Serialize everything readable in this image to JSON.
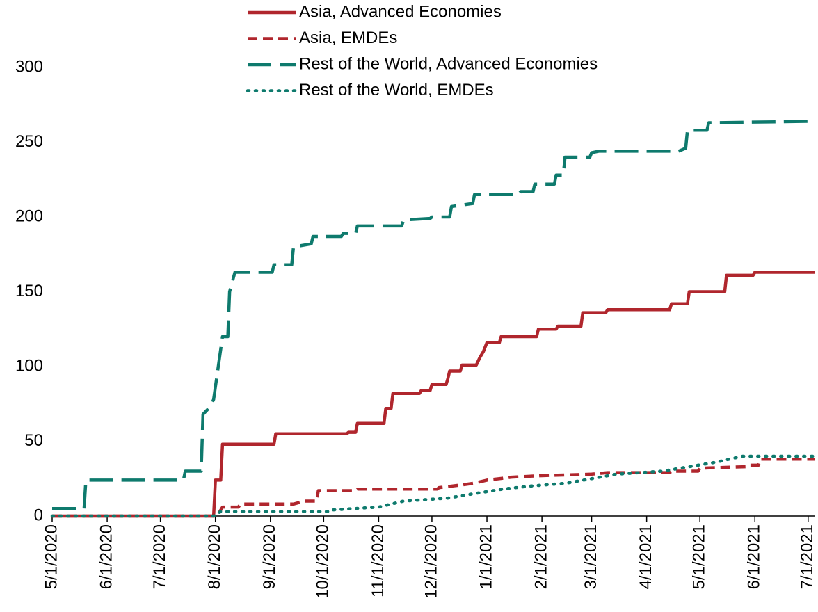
{
  "chart_data": {
    "type": "line",
    "xlim": [
      "5/1/2020",
      "7/5/2021"
    ],
    "xticks": [
      "5/1/2020",
      "6/1/2020",
      "7/1/2020",
      "8/1/2020",
      "9/1/2020",
      "10/1/2020",
      "11/1/2020",
      "12/1/2020",
      "1/1/2021",
      "2/1/2021",
      "3/1/2021",
      "4/1/2021",
      "5/1/2021",
      "6/1/2021",
      "7/1/2021"
    ],
    "ylim": [
      0,
      300
    ],
    "yticks": [
      0,
      50,
      100,
      150,
      200,
      250,
      300
    ],
    "series": [
      {
        "name": "Asia, Advanced Economies",
        "color": "#b0262d",
        "style": "solid",
        "x": [
          "5/1/2020",
          "7/31/2020",
          "8/1/2020",
          "8/4/2020",
          "8/5/2020",
          "9/3/2020",
          "9/4/2020",
          "10/14/2020",
          "10/15/2020",
          "10/19/2020",
          "10/20/2020",
          "11/4/2020",
          "11/5/2020",
          "11/8/2020",
          "11/9/2020",
          "11/24/2020",
          "11/25/2020",
          "11/30/2020",
          "12/1/2020",
          "12/9/2020",
          "12/10/2020",
          "12/11/2020",
          "12/17/2020",
          "12/18/2020",
          "12/26/2020",
          "12/28/2020",
          "12/30/2020",
          "1/1/2021",
          "1/8/2021",
          "1/9/2021",
          "1/29/2021",
          "1/30/2021",
          "2/9/2021",
          "2/10/2021",
          "2/23/2021",
          "2/24/2021",
          "3/9/2021",
          "3/10/2021",
          "4/14/2021",
          "4/15/2021",
          "4/24/2021",
          "4/25/2021",
          "5/15/2021",
          "5/16/2021",
          "5/31/2021",
          "6/1/2021",
          "7/5/2021"
        ],
        "values": [
          0,
          0,
          24,
          24,
          48,
          48,
          55,
          55,
          56,
          56,
          62,
          62,
          72,
          72,
          82,
          82,
          84,
          84,
          88,
          88,
          92,
          97,
          97,
          101,
          101,
          106,
          110,
          116,
          116,
          120,
          120,
          125,
          125,
          127,
          127,
          136,
          136,
          138,
          138,
          142,
          142,
          150,
          150,
          161,
          161,
          163,
          163
        ]
      },
      {
        "name": "Asia, EMDEs",
        "color": "#b0262d",
        "style": "dashed",
        "x": [
          "5/1/2020",
          "8/2/2020",
          "8/5/2020",
          "8/14/2020",
          "8/15/2020",
          "9/14/2020",
          "9/20/2020",
          "9/27/2020",
          "9/28/2020",
          "10/19/2020",
          "10/20/2020",
          "12/4/2020",
          "12/5/2020",
          "12/19/2020",
          "12/25/2020",
          "1/1/2021",
          "1/15/2021",
          "2/1/2021",
          "3/1/2021",
          "3/10/2021",
          "4/14/2021",
          "4/15/2021",
          "4/30/2021",
          "5/1/2021",
          "5/27/2021",
          "5/28/2021",
          "6/3/2021",
          "6/4/2021",
          "7/5/2021"
        ],
        "values": [
          0,
          0,
          6,
          6,
          8,
          8,
          10,
          10,
          17,
          17,
          18,
          18,
          19,
          21,
          22,
          24,
          26,
          27,
          28,
          29,
          29,
          30,
          30,
          32,
          33,
          34,
          34,
          38,
          38
        ]
      },
      {
        "name": "Rest of the World, Advanced Economies",
        "color": "#0e7a6d",
        "style": "longdash",
        "x": [
          "5/1/2020",
          "5/19/2020",
          "5/20/2020",
          "7/14/2020",
          "7/15/2020",
          "7/24/2020",
          "7/25/2020",
          "7/29/2020",
          "7/31/2020",
          "8/5/2020",
          "8/8/2020",
          "8/9/2020",
          "8/12/2020",
          "9/2/2020",
          "9/3/2020",
          "9/13/2020",
          "9/14/2020",
          "9/24/2020",
          "9/25/2020",
          "10/11/2020",
          "10/12/2020",
          "10/19/2020",
          "10/20/2020",
          "11/14/2020",
          "11/15/2020",
          "11/30/2020",
          "12/1/2020",
          "12/11/2020",
          "12/12/2020",
          "12/24/2020",
          "12/25/2020",
          "1/19/2021",
          "1/20/2021",
          "1/27/2021",
          "1/28/2021",
          "2/8/2021",
          "2/9/2021",
          "2/13/2021",
          "2/14/2021",
          "2/28/2021",
          "3/1/2021",
          "3/5/2021",
          "4/19/2021",
          "4/23/2021",
          "4/24/2021",
          "5/5/2021",
          "5/6/2021",
          "7/5/2021"
        ],
        "values": [
          5,
          5,
          24,
          24,
          30,
          30,
          68,
          73,
          78,
          120,
          120,
          150,
          163,
          163,
          168,
          168,
          180,
          182,
          187,
          187,
          189,
          189,
          194,
          194,
          198,
          199,
          200,
          200,
          207,
          209,
          215,
          215,
          217,
          217,
          222,
          222,
          228,
          228,
          240,
          240,
          243,
          244,
          244,
          246,
          258,
          258,
          263,
          264
        ]
      },
      {
        "name": "Rest of the World, EMDEs",
        "color": "#0e7a6d",
        "style": "dotted",
        "x": [
          "5/1/2020",
          "7/31/2020",
          "8/4/2020",
          "10/4/2020",
          "10/5/2020",
          "11/1/2020",
          "11/15/2020",
          "12/10/2020",
          "12/25/2020",
          "1/10/2021",
          "1/25/2021",
          "2/15/2021",
          "3/1/2021",
          "3/15/2021",
          "4/10/2021",
          "4/25/2021",
          "5/10/2021",
          "5/25/2021",
          "6/20/2021",
          "7/5/2021"
        ],
        "values": [
          0,
          0,
          3,
          3,
          4,
          6,
          10,
          12,
          15,
          18,
          20,
          22,
          25,
          28,
          30,
          33,
          36,
          40,
          40,
          40
        ]
      }
    ]
  }
}
